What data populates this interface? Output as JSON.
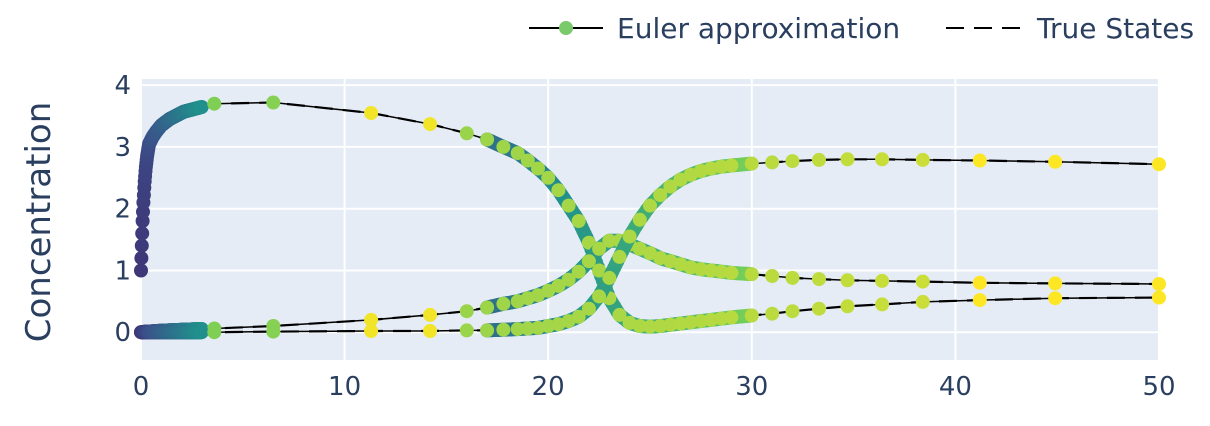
{
  "chart_data": {
    "type": "line",
    "title": "",
    "xlabel": "",
    "ylabel": "Concentration",
    "xlim": [
      0,
      50
    ],
    "ylim": [
      -0.45,
      4.1
    ],
    "xticks": [
      0,
      10,
      20,
      30,
      40,
      50
    ],
    "yticks": [
      0,
      1,
      2,
      3,
      4
    ],
    "grid": true,
    "legend_position": "top-right",
    "colors": {
      "plot_bg": "#e5ecf6",
      "grid": "#ffffff",
      "text": "#2a3f5f",
      "line": "#000000",
      "legend_marker": "#7ac96a"
    },
    "legend": [
      {
        "name": "Euler approximation",
        "style": "line-markers"
      },
      {
        "name": "True States",
        "style": "dash"
      }
    ],
    "series": [
      {
        "role": "euler",
        "marker_t": [
          0,
          0.02,
          0.05,
          0.08,
          0.12,
          0.17,
          0.23,
          0.3,
          0.4,
          0.55,
          0.75,
          1.0,
          1.4,
          2.1,
          3.6,
          6.5,
          11.3,
          14.2,
          16,
          17,
          17.8,
          18.5,
          19,
          19.5,
          20,
          20.5,
          21,
          21.5,
          22,
          22.5,
          23,
          23.5,
          24,
          24.5,
          25,
          25.5,
          26,
          26.5,
          27,
          27.5,
          28,
          28.5,
          29,
          30,
          31,
          32,
          33.3,
          34.7,
          36.4,
          38.4,
          41.2,
          44.9,
          50
        ],
        "x": [
          0,
          0.02,
          0.05,
          0.08,
          0.12,
          0.17,
          0.23,
          0.3,
          0.4,
          0.55,
          0.75,
          1.0,
          1.4,
          2.1,
          3.6,
          6.5,
          11.3,
          14.2,
          16,
          17,
          17.8,
          18.5,
          19,
          19.5,
          20,
          20.5,
          21,
          21.5,
          22,
          22.5,
          23,
          23.5,
          24,
          24.5,
          25,
          25.5,
          26,
          26.5,
          27,
          27.5,
          28,
          28.5,
          29,
          30,
          31,
          32,
          33.3,
          34.7,
          36.4,
          38.4,
          41.2,
          44.9,
          50
        ],
        "y": [
          1.0,
          1.2,
          1.5,
          1.8,
          2.1,
          2.4,
          2.65,
          2.85,
          3.05,
          3.15,
          3.25,
          3.35,
          3.45,
          3.57,
          3.7,
          3.72,
          3.55,
          3.37,
          3.22,
          3.12,
          3.0,
          2.9,
          2.78,
          2.65,
          2.5,
          2.3,
          2.05,
          1.8,
          1.45,
          1.0,
          0.55,
          0.28,
          0.15,
          0.1,
          0.09,
          0.1,
          0.12,
          0.14,
          0.16,
          0.18,
          0.2,
          0.22,
          0.24,
          0.27,
          0.3,
          0.34,
          0.38,
          0.42,
          0.45,
          0.49,
          0.52,
          0.55,
          0.56
        ]
      },
      {
        "role": "euler",
        "x": [
          0,
          0.05,
          0.1,
          0.2,
          0.4,
          0.8,
          1.4,
          2.1,
          3.6,
          6.5,
          11.3,
          14.2,
          16,
          17,
          17.8,
          18.5,
          19,
          19.5,
          20,
          20.5,
          21,
          21.5,
          22,
          22.5,
          23,
          23.5,
          24,
          24.5,
          25,
          25.5,
          26,
          26.5,
          27,
          27.5,
          28,
          28.5,
          29,
          30,
          31,
          32,
          33.3,
          34.7,
          36.4,
          38.4,
          41.2,
          44.9,
          50
        ],
        "y": [
          0,
          0,
          0,
          0.01,
          0.01,
          0.02,
          0.03,
          0.04,
          0.06,
          0.1,
          0.2,
          0.28,
          0.34,
          0.4,
          0.46,
          0.5,
          0.55,
          0.6,
          0.67,
          0.75,
          0.85,
          0.98,
          1.15,
          1.35,
          1.48,
          1.48,
          1.42,
          1.35,
          1.28,
          1.2,
          1.15,
          1.1,
          1.05,
          1.02,
          1.0,
          0.98,
          0.96,
          0.94,
          0.91,
          0.88,
          0.86,
          0.84,
          0.83,
          0.82,
          0.8,
          0.79,
          0.78
        ]
      },
      {
        "role": "euler",
        "x": [
          0,
          0.1,
          0.3,
          0.8,
          1.4,
          2.1,
          3.6,
          6.5,
          11.3,
          14.2,
          16,
          17,
          17.8,
          18.5,
          19,
          19.5,
          20,
          20.5,
          21,
          21.5,
          22,
          22.5,
          23,
          23.5,
          24,
          24.5,
          25,
          25.5,
          26,
          26.5,
          27,
          27.5,
          28,
          28.5,
          29,
          30,
          31,
          32,
          33.3,
          34.7,
          36.4,
          38.4,
          41.2,
          44.9,
          50
        ],
        "y": [
          0,
          0,
          0,
          0,
          0,
          0,
          0,
          0.01,
          0.02,
          0.02,
          0.03,
          0.03,
          0.04,
          0.05,
          0.06,
          0.07,
          0.1,
          0.13,
          0.18,
          0.25,
          0.38,
          0.58,
          0.88,
          1.22,
          1.55,
          1.82,
          2.05,
          2.22,
          2.36,
          2.47,
          2.55,
          2.61,
          2.65,
          2.68,
          2.7,
          2.73,
          2.75,
          2.77,
          2.79,
          2.8,
          2.8,
          2.79,
          2.78,
          2.76,
          2.72
        ]
      }
    ]
  }
}
